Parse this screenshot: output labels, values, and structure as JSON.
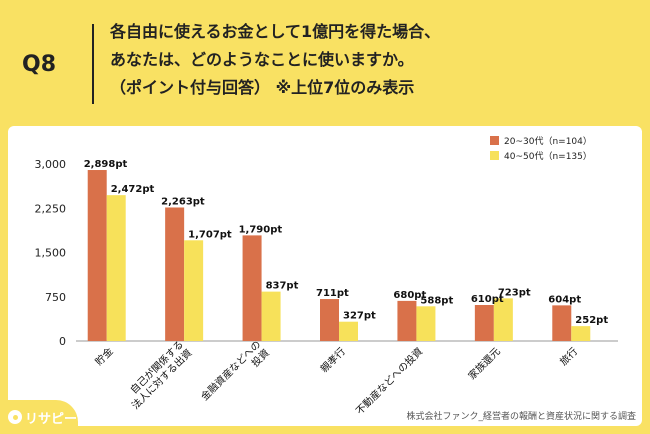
{
  "question": {
    "number": "Q8",
    "lines": [
      "各自由に使えるお金として1億円を得た場合、",
      "あなたは、どのようなことに使いますか。",
      "（ポイント付与回答） ※上位7位のみ表示"
    ]
  },
  "chart_data": {
    "type": "bar",
    "categories": [
      [
        "貯金"
      ],
      [
        "自己が関係する",
        "法人に対する出資"
      ],
      [
        "金融資産などへの",
        "投資"
      ],
      [
        "親孝行"
      ],
      [
        "不動産などへの投資"
      ],
      [
        "家族還元"
      ],
      [
        "旅行"
      ]
    ],
    "series": [
      {
        "name": "20~30代（n=104）",
        "color": "#D9714A",
        "values": [
          2898,
          2263,
          1790,
          711,
          680,
          610,
          604
        ],
        "labels": [
          "2,898pt",
          "2,263pt",
          "1,790pt",
          "711pt",
          "680pt",
          "610pt",
          "604pt"
        ]
      },
      {
        "name": "40~50代（n=135）",
        "color": "#F7E15A",
        "values": [
          2472,
          1707,
          837,
          327,
          588,
          723,
          252
        ],
        "labels": [
          "2,472pt",
          "1,707pt",
          "837pt",
          "327pt",
          "588pt",
          "723pt",
          "252pt"
        ]
      }
    ],
    "yticks": [
      0,
      750,
      1500,
      2250,
      3000
    ],
    "ytick_labels": [
      "0",
      "750",
      "1,500",
      "2,250",
      "3,000"
    ],
    "ylim": [
      0,
      3000
    ],
    "grid": false,
    "legend": "top-right"
  },
  "source": "株式会社ファンク_経営者の報酬と資産状況に関する調査",
  "brand": "リサピー"
}
